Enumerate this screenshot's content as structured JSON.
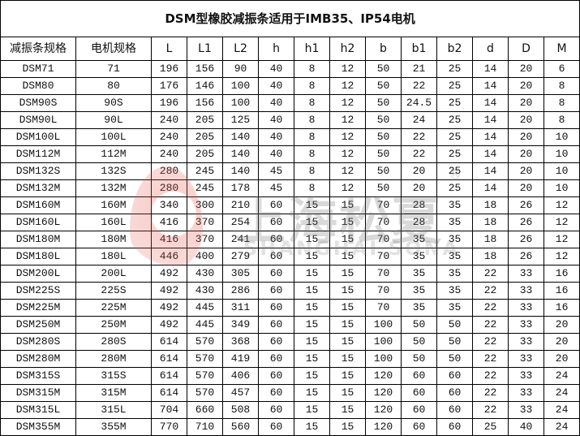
{
  "title": "DSM型橡胶减振条适用于IMB35、IP54电机",
  "headers": [
    "减振条规格",
    "电机规格",
    "L",
    "L1",
    "L2",
    "h",
    "h1",
    "h2",
    "b",
    "b1",
    "b2",
    "d",
    "D",
    "M"
  ],
  "rows": [
    [
      "DSM71",
      "71",
      "196",
      "156",
      "90",
      "40",
      "8",
      "12",
      "50",
      "21",
      "25",
      "14",
      "20",
      "6"
    ],
    [
      "DSM80",
      "80",
      "176",
      "146",
      "100",
      "40",
      "8",
      "12",
      "50",
      "22",
      "25",
      "14",
      "20",
      "8"
    ],
    [
      "DSM90S",
      "90S",
      "196",
      "156",
      "100",
      "40",
      "8",
      "12",
      "50",
      "24.5",
      "25",
      "14",
      "20",
      "8"
    ],
    [
      "DSM90L",
      "90L",
      "240",
      "205",
      "125",
      "40",
      "8",
      "12",
      "50",
      "24",
      "25",
      "14",
      "20",
      "8"
    ],
    [
      "DSM100L",
      "100L",
      "240",
      "205",
      "140",
      "40",
      "8",
      "12",
      "50",
      "22",
      "25",
      "14",
      "20",
      "10"
    ],
    [
      "DSM112M",
      "112M",
      "240",
      "205",
      "140",
      "40",
      "8",
      "12",
      "50",
      "22",
      "25",
      "14",
      "20",
      "10"
    ],
    [
      "DSM132S",
      "132S",
      "280",
      "245",
      "140",
      "45",
      "8",
      "12",
      "50",
      "20",
      "25",
      "14",
      "20",
      "10"
    ],
    [
      "DSM132M",
      "132M",
      "280",
      "245",
      "178",
      "45",
      "8",
      "12",
      "50",
      "20",
      "25",
      "14",
      "20",
      "10"
    ],
    [
      "DSM160M",
      "160M",
      "340",
      "300",
      "210",
      "60",
      "15",
      "15",
      "70",
      "28",
      "35",
      "18",
      "26",
      "12"
    ],
    [
      "DSM160L",
      "160L",
      "416",
      "370",
      "254",
      "60",
      "15",
      "15",
      "70",
      "28",
      "35",
      "18",
      "26",
      "12"
    ],
    [
      "DSM180M",
      "180M",
      "416",
      "370",
      "241",
      "60",
      "15",
      "15",
      "70",
      "35",
      "35",
      "18",
      "26",
      "12"
    ],
    [
      "DSM180L",
      "180L",
      "446",
      "400",
      "279",
      "60",
      "15",
      "15",
      "70",
      "35",
      "35",
      "18",
      "26",
      "12"
    ],
    [
      "DSM200L",
      "200L",
      "492",
      "430",
      "305",
      "60",
      "15",
      "15",
      "70",
      "35",
      "35",
      "22",
      "33",
      "16"
    ],
    [
      "DSM225S",
      "225S",
      "492",
      "430",
      "286",
      "60",
      "15",
      "15",
      "70",
      "35",
      "35",
      "22",
      "33",
      "16"
    ],
    [
      "DSM225M",
      "225M",
      "492",
      "445",
      "311",
      "60",
      "15",
      "15",
      "70",
      "35",
      "35",
      "22",
      "33",
      "16"
    ],
    [
      "DSM250M",
      "250M",
      "492",
      "445",
      "349",
      "60",
      "15",
      "15",
      "100",
      "50",
      "50",
      "22",
      "33",
      "20"
    ],
    [
      "DSM280S",
      "280S",
      "614",
      "570",
      "368",
      "60",
      "15",
      "15",
      "100",
      "50",
      "50",
      "22",
      "33",
      "20"
    ],
    [
      "DSM280M",
      "280M",
      "614",
      "570",
      "419",
      "60",
      "15",
      "15",
      "100",
      "50",
      "50",
      "22",
      "33",
      "20"
    ],
    [
      "DSM315S",
      "315S",
      "614",
      "570",
      "406",
      "60",
      "15",
      "15",
      "120",
      "60",
      "60",
      "22",
      "33",
      "24"
    ],
    [
      "DSM315M",
      "315M",
      "614",
      "570",
      "457",
      "60",
      "15",
      "15",
      "120",
      "60",
      "60",
      "22",
      "33",
      "24"
    ],
    [
      "DSM315L",
      "315L",
      "704",
      "660",
      "508",
      "60",
      "15",
      "15",
      "120",
      "60",
      "60",
      "22",
      "33",
      "24"
    ],
    [
      "DSM355M",
      "355M",
      "770",
      "710",
      "560",
      "60",
      "15",
      "15",
      "120",
      "60",
      "60",
      "25",
      "40",
      "24"
    ]
  ],
  "watermark": {
    "cn": "上海松夏",
    "en": "SHANGHAI SONA",
    "mark": "®",
    "color": "#e65a50"
  }
}
